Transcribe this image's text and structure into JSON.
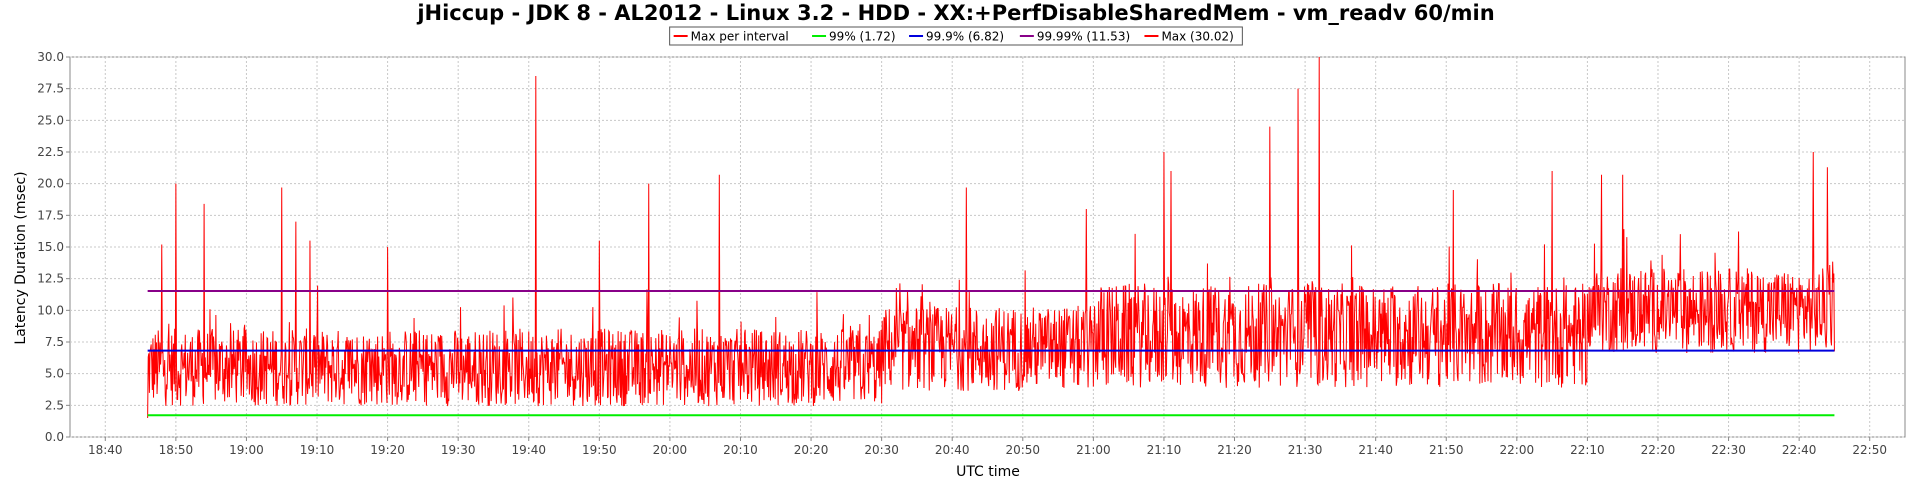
{
  "chart_data": {
    "type": "line",
    "title": "jHiccup - JDK 8 - AL2012 - Linux 3.2 - HDD - XX:+PerfDisableSharedMem - vm_readv 60/min",
    "xlabel": "UTC time",
    "ylabel": "Latency Duration (msec)",
    "ylim": [
      0,
      30
    ],
    "xlim": [
      "18:35",
      "22:55"
    ],
    "y_ticks": [
      "0.0",
      "2.5",
      "5.0",
      "7.5",
      "10.0",
      "12.5",
      "15.0",
      "17.5",
      "20.0",
      "22.5",
      "25.0",
      "27.5",
      "30.0"
    ],
    "x_ticks": [
      "18:40",
      "18:50",
      "19:00",
      "19:10",
      "19:20",
      "19:30",
      "19:40",
      "19:50",
      "20:00",
      "20:10",
      "20:20",
      "20:30",
      "20:40",
      "20:50",
      "21:00",
      "21:10",
      "21:20",
      "21:30",
      "21:40",
      "21:50",
      "22:00",
      "22:10",
      "22:20",
      "22:30",
      "22:40",
      "22:50"
    ],
    "grid": true,
    "legend_position": "top-center",
    "legend": [
      {
        "label": "Max per interval",
        "color": "#ff0000"
      },
      {
        "label": "99% (1.72)",
        "color": "#00ee00"
      },
      {
        "label": "99.9% (6.82)",
        "color": "#0000dd"
      },
      {
        "label": "99.99% (11.53)",
        "color": "#880088"
      },
      {
        "label": "Max (30.02)",
        "color": "#ff0000"
      }
    ],
    "series": [
      {
        "name": "Max per interval",
        "color": "#ff0000",
        "x_start": "18:46",
        "x_end": "22:45",
        "sample_interval_sec": 5,
        "baseline_segments": [
          {
            "from": "18:46",
            "to": "20:30",
            "typical": 5.5,
            "low": 1.8,
            "high": 10.0
          },
          {
            "from": "20:30",
            "to": "21:00",
            "typical": 7.0,
            "low": 3.0,
            "high": 12.0
          },
          {
            "from": "21:00",
            "to": "22:10",
            "typical": 8.0,
            "low": 3.0,
            "high": 14.0
          },
          {
            "from": "22:10",
            "to": "22:45",
            "typical": 10.0,
            "low": 6.0,
            "high": 15.0
          }
        ],
        "peaks": [
          {
            "x": "18:46",
            "y": 1.5
          },
          {
            "x": "18:48",
            "y": 15.2
          },
          {
            "x": "18:50",
            "y": 20.0
          },
          {
            "x": "18:54",
            "y": 18.4
          },
          {
            "x": "19:05",
            "y": 19.7
          },
          {
            "x": "19:07",
            "y": 17.0
          },
          {
            "x": "19:09",
            "y": 15.5
          },
          {
            "x": "19:20",
            "y": 15.0
          },
          {
            "x": "19:41",
            "y": 28.5
          },
          {
            "x": "19:50",
            "y": 15.5
          },
          {
            "x": "19:57",
            "y": 20.0
          },
          {
            "x": "20:07",
            "y": 20.7
          },
          {
            "x": "20:42",
            "y": 19.7
          },
          {
            "x": "20:59",
            "y": 18.0
          },
          {
            "x": "21:10",
            "y": 22.5
          },
          {
            "x": "21:11",
            "y": 21.0
          },
          {
            "x": "21:25",
            "y": 24.5
          },
          {
            "x": "21:29",
            "y": 27.5
          },
          {
            "x": "21:32",
            "y": 30.0
          },
          {
            "x": "21:51",
            "y": 19.5
          },
          {
            "x": "22:05",
            "y": 21.0
          },
          {
            "x": "22:12",
            "y": 20.7
          },
          {
            "x": "22:15",
            "y": 20.7
          },
          {
            "x": "22:42",
            "y": 22.5
          },
          {
            "x": "22:44",
            "y": 21.3
          }
        ]
      },
      {
        "name": "99% (1.72)",
        "color": "#00ee00",
        "x": [
          "18:46",
          "22:45"
        ],
        "y": [
          1.72,
          1.72
        ]
      },
      {
        "name": "99.9% (6.82)",
        "color": "#0000dd",
        "x": [
          "18:46",
          "22:45"
        ],
        "y": [
          6.82,
          6.82
        ]
      },
      {
        "name": "99.99% (11.53)",
        "color": "#880088",
        "x": [
          "18:46",
          "22:45"
        ],
        "y": [
          11.53,
          11.53
        ]
      }
    ]
  }
}
